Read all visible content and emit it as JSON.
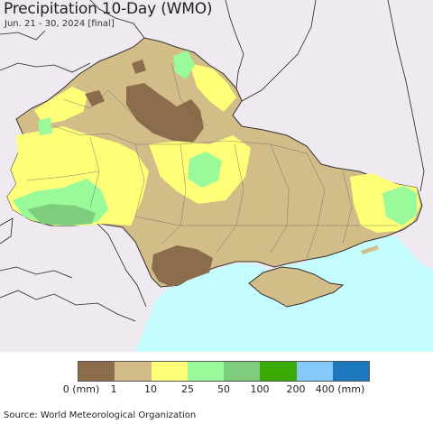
{
  "title": "Precipitation 10-Day (WMO)",
  "subtitle": "Jun. 21 - 30, 2024 [final]",
  "legend": {
    "colors": [
      "#8c6d4b",
      "#d2bd89",
      "#ffff78",
      "#98fa98",
      "#7dcd7d",
      "#3caa05",
      "#87c8fa",
      "#1e78be"
    ],
    "labels": [
      "0 (mm)",
      "1",
      "10",
      "25",
      "50",
      "100",
      "200",
      "400 (mm)"
    ]
  },
  "source": "Source: World Meteorological Organization",
  "map": {
    "background_color": "#efeaf0",
    "sea_color": "#c4fbfd",
    "border_color": "#222222"
  }
}
